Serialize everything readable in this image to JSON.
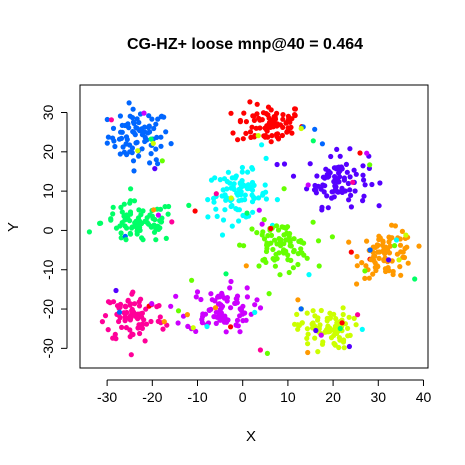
{
  "chart_data": {
    "type": "scatter",
    "title": "CG-HZ+ loose mnp@40 = 0.464",
    "xlabel": "X",
    "ylabel": "Y",
    "xlim": [
      -36,
      41
    ],
    "ylim": [
      -35,
      37
    ],
    "xticks": [
      -30,
      -20,
      -10,
      0,
      10,
      20,
      30,
      40
    ],
    "yticks": [
      -30,
      -20,
      -10,
      0,
      10,
      20,
      30
    ],
    "xtick_labels": [
      "-30",
      "-20",
      "-10",
      "0",
      "10",
      "20",
      "30",
      "40"
    ],
    "ytick_labels": [
      "-30",
      "-20",
      "-10",
      "0",
      "10",
      "20",
      "30"
    ],
    "grid": false,
    "legend": "none",
    "clusters": [
      {
        "color": "#0066ff",
        "center": [
          -23,
          24
        ],
        "spread": [
          4.5,
          4.5
        ],
        "count": 85
      },
      {
        "color": "#ff0000",
        "center": [
          6,
          27
        ],
        "spread": [
          5,
          3.5
        ],
        "count": 85
      },
      {
        "color": "#5500ff",
        "center": [
          21,
          13
        ],
        "spread": [
          4.5,
          4.5
        ],
        "count": 85
      },
      {
        "color": "#00ffff",
        "center": [
          -1,
          9
        ],
        "spread": [
          4.5,
          4
        ],
        "count": 85
      },
      {
        "color": "#00ff66",
        "center": [
          -23,
          2
        ],
        "spread": [
          5.5,
          3.5
        ],
        "count": 85
      },
      {
        "color": "#ff9900",
        "center": [
          32,
          -6
        ],
        "spread": [
          4,
          4
        ],
        "count": 85
      },
      {
        "color": "#66ff00",
        "center": [
          8,
          -4
        ],
        "spread": [
          5,
          4
        ],
        "count": 85
      },
      {
        "color": "#ff0099",
        "center": [
          -24,
          -22
        ],
        "spread": [
          4.5,
          4.5
        ],
        "count": 85
      },
      {
        "color": "#cc00ff",
        "center": [
          -5,
          -20
        ],
        "spread": [
          5,
          4
        ],
        "count": 85
      },
      {
        "color": "#ccff00",
        "center": [
          18,
          -25
        ],
        "spread": [
          4,
          3.5
        ],
        "count": 85
      }
    ],
    "noise_points_per_color": 8
  }
}
